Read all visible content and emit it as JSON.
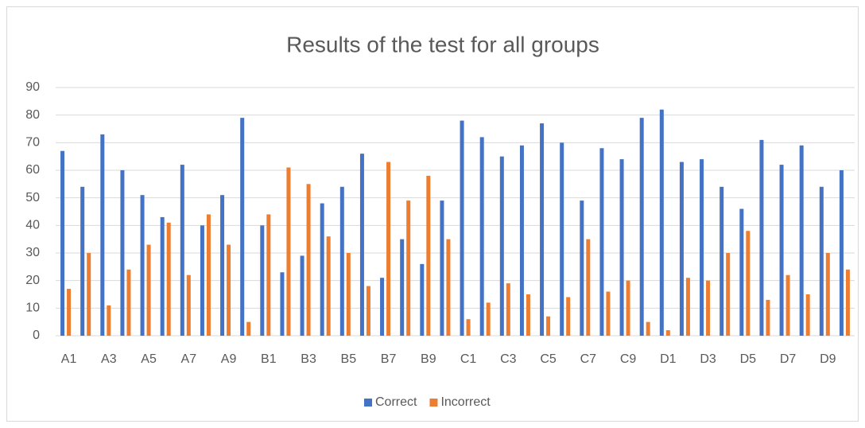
{
  "chart_data": {
    "type": "bar",
    "title": "Results of the test for all groups",
    "categories": [
      "A1",
      null,
      "A3",
      null,
      "A5",
      null,
      "A7",
      null,
      "A9",
      null,
      "B1",
      null,
      "B3",
      null,
      "B5",
      null,
      "B7",
      null,
      "B9",
      null,
      "C1",
      null,
      "C3",
      null,
      "C5",
      null,
      "C7",
      null,
      "C9",
      null,
      "D1",
      null,
      "D3",
      null,
      "D5",
      null,
      "D7",
      null,
      "D9",
      null
    ],
    "series": [
      {
        "name": "Correct",
        "color": "#4472c4",
        "values": [
          67,
          54,
          73,
          60,
          51,
          43,
          62,
          40,
          51,
          79,
          40,
          23,
          29,
          48,
          54,
          66,
          21,
          35,
          26,
          49,
          78,
          72,
          65,
          69,
          77,
          70,
          49,
          68,
          64,
          79,
          82,
          63,
          64,
          54,
          46,
          71,
          62,
          69,
          54,
          60
        ]
      },
      {
        "name": "Incorrect",
        "color": "#ed7d31",
        "values": [
          17,
          30,
          11,
          24,
          33,
          41,
          22,
          44,
          33,
          5,
          44,
          61,
          55,
          36,
          30,
          18,
          63,
          49,
          58,
          35,
          6,
          12,
          19,
          15,
          7,
          14,
          35,
          16,
          20,
          5,
          2,
          21,
          20,
          30,
          38,
          13,
          22,
          15,
          30,
          24
        ]
      }
    ],
    "ylim": [
      0,
      90
    ],
    "yticks": [
      0,
      10,
      20,
      30,
      40,
      50,
      60,
      70,
      80,
      90
    ],
    "grid": true,
    "legend": "bottom"
  }
}
